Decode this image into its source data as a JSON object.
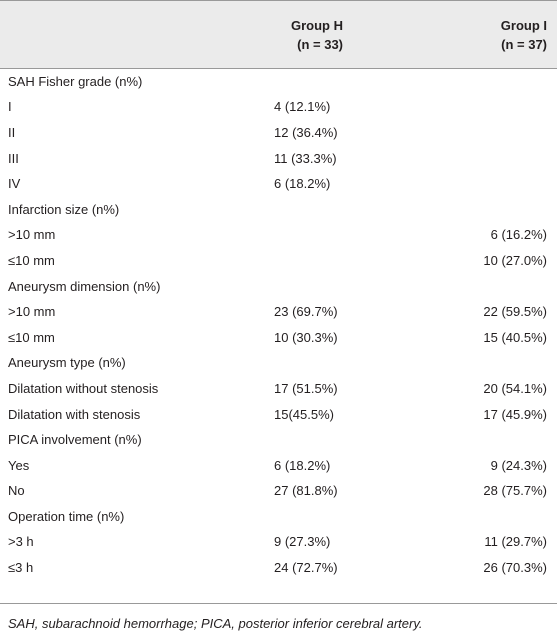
{
  "table": {
    "header": [
      {
        "name": "Group H",
        "count": "(n = 33)"
      },
      {
        "name": "Group I",
        "count": "(n = 37)"
      }
    ],
    "rows": [
      [
        "SAH Fisher grade (n%)",
        null,
        null
      ],
      [
        "I",
        "4 (12.1%)",
        null
      ],
      [
        "II",
        "12 (36.4%)",
        null
      ],
      [
        "III",
        "11 (33.3%)",
        null
      ],
      [
        "IV",
        "6 (18.2%)",
        null
      ],
      [
        "Infarction size (n%)",
        null,
        null
      ],
      [
        ">10 mm",
        null,
        "6 (16.2%)"
      ],
      [
        "≤10 mm",
        null,
        "10 (27.0%)"
      ],
      [
        "Aneurysm dimension (n%)",
        null,
        null
      ],
      [
        ">10 mm",
        "23 (69.7%)",
        "22 (59.5%)"
      ],
      [
        "≤10 mm",
        "10 (30.3%)",
        "15 (40.5%)"
      ],
      [
        "Aneurysm type (n%)",
        null,
        null
      ],
      [
        "Dilatation without stenosis",
        "17 (51.5%)",
        "20 (54.1%)"
      ],
      [
        "Dilatation with stenosis",
        "15(45.5%)",
        "17 (45.9%)"
      ],
      [
        "PICA involvement (n%)",
        null,
        null
      ],
      [
        "Yes",
        "6 (18.2%)",
        "9 (24.3%)"
      ],
      [
        "No",
        "27 (81.8%)",
        "28 (75.7%)"
      ],
      [
        "Operation time (n%)",
        null,
        null
      ],
      [
        ">3 h",
        "9 (27.3%)",
        "11 (29.7%)"
      ],
      [
        "≤3 h",
        "24 (72.7%)",
        "26 (70.3%)"
      ]
    ],
    "footnote": "SAH, subarachnoid hemorrhage; PICA, posterior inferior cerebral artery."
  }
}
